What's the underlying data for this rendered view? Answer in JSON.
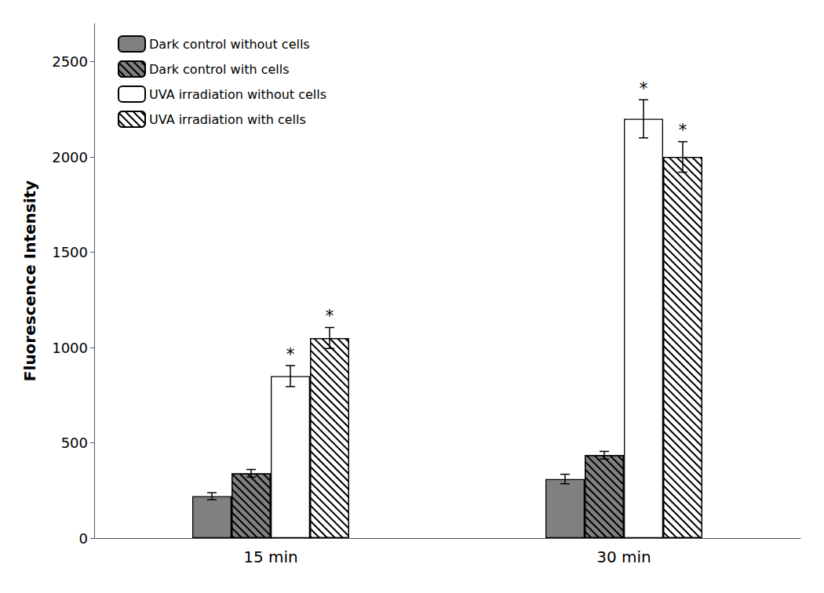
{
  "chart_data": {
    "type": "bar",
    "ylabel": "Fluorescence Intensity",
    "categories": [
      "15 min",
      "30 min"
    ],
    "series": [
      {
        "name": "Dark control without cells",
        "color": "#808080",
        "values": [
          220,
          310
        ],
        "errors": [
          18,
          25
        ],
        "significant": [
          false,
          false
        ]
      },
      {
        "name": "Dark control with cells",
        "color": "#808080",
        "values": [
          340,
          435
        ],
        "errors": [
          20,
          20
        ],
        "significant": [
          false,
          false
        ]
      },
      {
        "name": "UVA irradiation without cells",
        "color": "#ffffff",
        "values": [
          850,
          2200
        ],
        "errors": [
          55,
          100
        ],
        "significant": [
          true,
          true
        ]
      },
      {
        "name": "UVA irradiation with cells",
        "color": "#ffffff",
        "values": [
          1050,
          2000
        ],
        "errors": [
          55,
          80
        ],
        "significant": [
          true,
          true
        ]
      }
    ],
    "significance_label": "*",
    "ylim": [
      0,
      2700
    ],
    "yticks": [
      0,
      500,
      1000,
      1500,
      2000,
      2500
    ],
    "grid": false,
    "legend": "upper left"
  }
}
